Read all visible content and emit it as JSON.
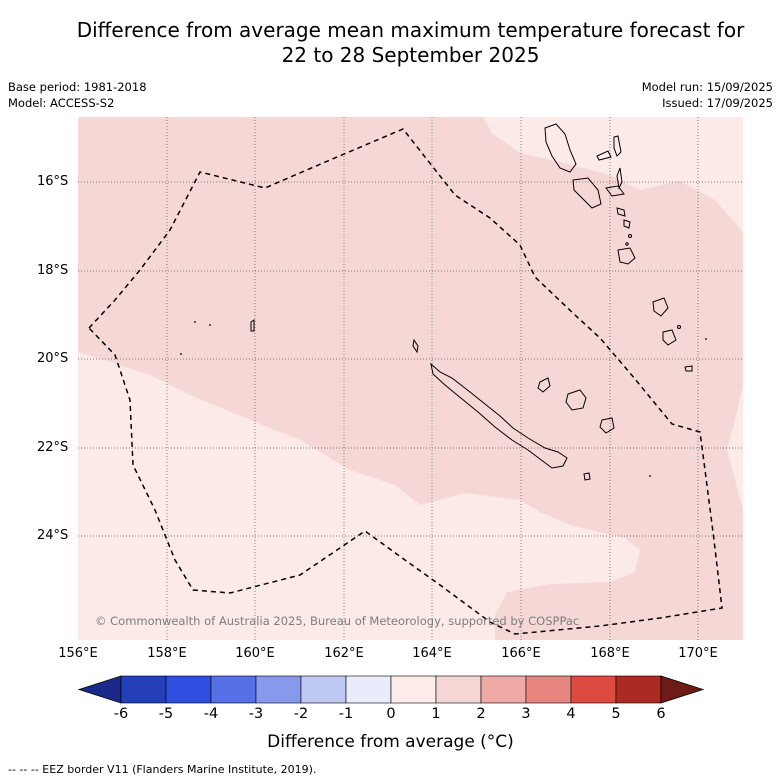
{
  "title_line1": "Difference from average mean maximum temperature forecast for",
  "title_line2": "22 to 28 September 2025",
  "meta_left": {
    "base_period": "Base period: 1981-2018",
    "model": "Model: ACCESS-S2"
  },
  "meta_right": {
    "model_run": "Model run: 15/09/2025",
    "issued": "Issued: 17/09/2025"
  },
  "copyright": "© Commonwealth of Australia 2025, Bureau of Meteorology, supported by COSPPac",
  "lat_labels": [
    "16°S",
    "18°S",
    "20°S",
    "22°S",
    "24°S"
  ],
  "lon_labels": [
    "156°E",
    "158°E",
    "160°E",
    "162°E",
    "164°E",
    "166°E",
    "168°E",
    "170°E"
  ],
  "colorbar": {
    "ticks": [
      "-6",
      "-5",
      "-4",
      "-3",
      "-2",
      "-1",
      "0",
      "1",
      "2",
      "3",
      "4",
      "5",
      "6"
    ],
    "colors": [
      "#1b2a8a",
      "#2340b8",
      "#2f4fe0",
      "#5670e6",
      "#8799ec",
      "#c0c8f4",
      "#e8ecfb",
      "#fdecea",
      "#f6d6d4",
      "#efaaa6",
      "#e88680",
      "#dd4a40",
      "#ab2a22",
      "#6e1a16"
    ],
    "title": "Difference from average (°C)"
  },
  "map_colors": {
    "zone_0_to_1": "#fbeae8",
    "zone_1_to_2": "#f5d8d5"
  },
  "footnote": "-- -- -- EEZ border V11 (Flanders Marine Institute, 2019)."
}
